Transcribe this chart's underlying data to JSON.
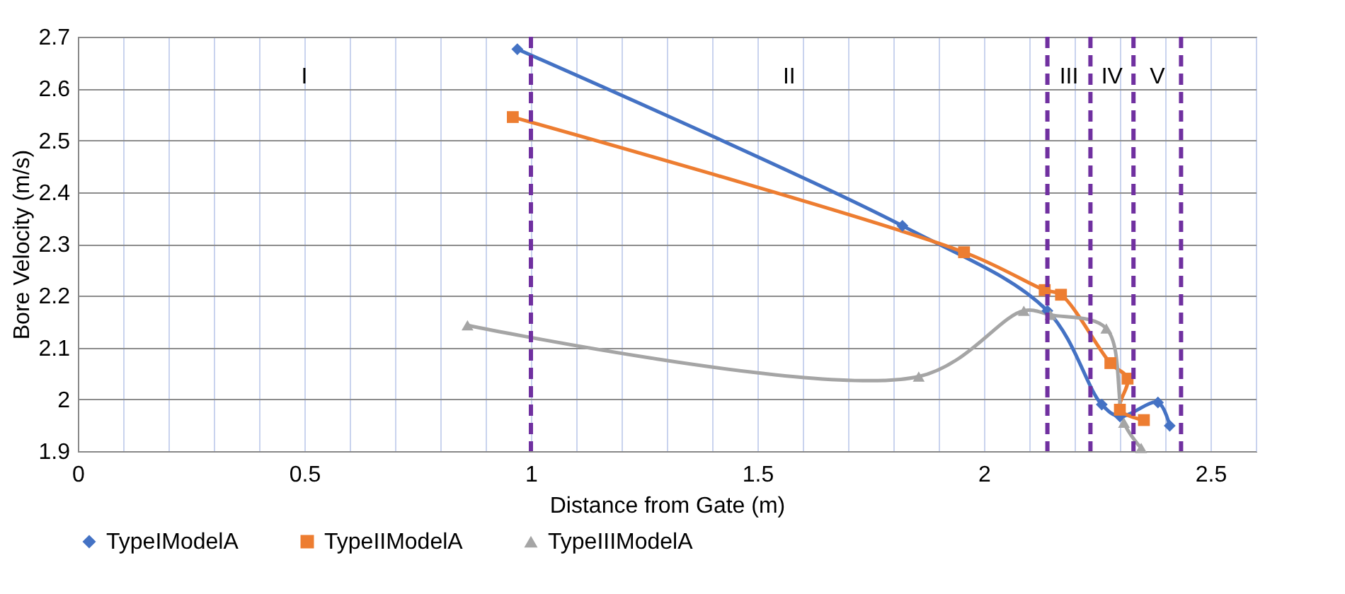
{
  "chart_data": {
    "type": "line",
    "xlabel": "Distance from Gate (m)",
    "ylabel": "Bore Velocity (m/s)",
    "xlim": [
      0,
      2.6
    ],
    "ylim": [
      1.9,
      2.7
    ],
    "xticks": [
      0,
      {
        "value": 0.1,
        "label": null
      },
      {
        "value": 0.2,
        "label": null
      },
      {
        "value": 0.3,
        "label": null
      },
      {
        "value": 0.4,
        "label": null
      },
      0.5,
      {
        "value": 0.6,
        "label": null
      },
      {
        "value": 0.7,
        "label": null
      },
      {
        "value": 0.8,
        "label": null
      },
      {
        "value": 0.9,
        "label": null
      },
      1,
      {
        "value": 1.1,
        "label": null
      },
      {
        "value": 1.2,
        "label": null
      },
      {
        "value": 1.3,
        "label": null
      },
      {
        "value": 1.4,
        "label": null
      },
      1.5,
      {
        "value": 1.6,
        "label": null
      },
      {
        "value": 1.7,
        "label": null
      },
      {
        "value": 1.8,
        "label": null
      },
      {
        "value": 1.9,
        "label": null
      },
      2,
      {
        "value": 2.1,
        "label": null
      },
      {
        "value": 2.2,
        "label": null
      },
      {
        "value": 2.3,
        "label": null
      },
      {
        "value": 2.4,
        "label": null
      },
      2.5,
      {
        "value": 2.6,
        "label": null
      }
    ],
    "yticks": [
      1.9,
      2,
      2.1,
      2.2,
      2.3,
      2.4,
      2.5,
      2.6,
      2.7
    ],
    "grid": true,
    "legend": "bottom",
    "series": [
      {
        "name": "TypeIModelA",
        "color": "#4472c4",
        "marker": "diamond",
        "x": [
          0.97,
          1.82,
          2.14,
          2.26,
          2.3,
          2.384,
          2.41
        ],
        "values": [
          2.676,
          2.335,
          2.171,
          1.99,
          1.967,
          1.994,
          1.949
        ]
      },
      {
        "name": "TypeIIModelA",
        "color": "#ed7d31",
        "marker": "square",
        "x": [
          0.96,
          1.956,
          2.134,
          2.17,
          2.279,
          2.317,
          2.3,
          2.353
        ],
        "values": [
          2.545,
          2.284,
          2.211,
          2.202,
          2.07,
          2.04,
          1.98,
          1.96
        ]
      },
      {
        "name": "TypeIIIModelA",
        "color": "#a5a5a5",
        "marker": "triangle",
        "x": [
          0.86,
          1.856,
          2.088,
          2.147,
          2.27,
          2.309,
          2.347
        ],
        "values": [
          2.143,
          2.044,
          2.171,
          2.163,
          2.137,
          1.955,
          1.906
        ]
      }
    ],
    "ref_lines": [
      {
        "axis": "x",
        "value": 1,
        "color": "#7030a0",
        "line_style": "dashed"
      },
      {
        "axis": "x",
        "value": 2.14,
        "color": "#7030a0",
        "line_style": "dashed"
      },
      {
        "axis": "x",
        "value": 2.235,
        "color": "#7030a0",
        "line_style": "dashed"
      },
      {
        "axis": "x",
        "value": 2.33,
        "color": "#7030a0",
        "line_style": "dashed"
      },
      {
        "axis": "x",
        "value": 2.435,
        "color": "#7030a0",
        "line_style": "dashed"
      }
    ],
    "annotations": [
      "I",
      "II",
      "III",
      "IV",
      "V"
    ]
  }
}
